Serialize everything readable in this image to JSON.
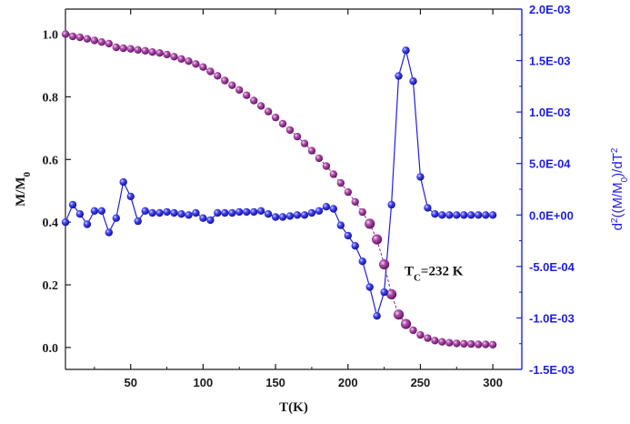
{
  "chart_data": {
    "type": "scatter",
    "title": "",
    "xlabel": "T(K)",
    "ylabel_left": "M/M",
    "ylabel_left_sub": "0",
    "ylabel_right_parts": [
      "d",
      "2",
      "((M/M",
      "0",
      ")/dT",
      "2"
    ],
    "xlim": [
      5,
      320
    ],
    "ylim_left": [
      -0.07,
      1.08
    ],
    "ylim_right": [
      -0.0015,
      0.002
    ],
    "x_ticks": [
      50,
      100,
      150,
      200,
      250,
      300
    ],
    "x_tick_labels": [
      "50",
      "100",
      "150",
      "200",
      "250",
      "300"
    ],
    "y_left_ticks": [
      0.0,
      0.2,
      0.4,
      0.6,
      0.8,
      1.0
    ],
    "y_left_tick_labels": [
      "0.0",
      "0.2",
      "0.4",
      "0.6",
      "0.8",
      "1.0"
    ],
    "y_right_ticks": [
      -0.0015,
      -0.001,
      -0.0005,
      0.0,
      0.0005,
      0.001,
      0.0015,
      0.002
    ],
    "y_right_tick_labels": [
      "-1.5E-03",
      "-1.0E-03",
      "-5.0E-04",
      "0.0E+00",
      "5.0E-04",
      "1.0E-03",
      "1.5E-03",
      "2.0E-03"
    ],
    "annotation": {
      "main": "T",
      "sub": "C",
      "rest": "=232 K",
      "x": 234,
      "y_left": 0.23
    },
    "series": [
      {
        "name": "M/M0",
        "axis": "left",
        "color": "#8a1f88",
        "marker": "sphere",
        "x": [
          5,
          10,
          15,
          20,
          25,
          30,
          35,
          40,
          45,
          50,
          55,
          60,
          65,
          70,
          75,
          80,
          85,
          90,
          95,
          100,
          105,
          110,
          115,
          120,
          125,
          130,
          135,
          140,
          145,
          150,
          155,
          160,
          165,
          170,
          175,
          180,
          185,
          190,
          195,
          200,
          205,
          210,
          215,
          220,
          225,
          230,
          235,
          240,
          245,
          250,
          255,
          260,
          265,
          270,
          275,
          280,
          285,
          290,
          295,
          300
        ],
        "values": [
          1.0,
          0.993,
          0.99,
          0.985,
          0.98,
          0.975,
          0.97,
          0.958,
          0.955,
          0.953,
          0.95,
          0.947,
          0.943,
          0.94,
          0.935,
          0.928,
          0.921,
          0.914,
          0.905,
          0.895,
          0.881,
          0.867,
          0.852,
          0.837,
          0.822,
          0.805,
          0.788,
          0.771,
          0.753,
          0.734,
          0.714,
          0.694,
          0.673,
          0.651,
          0.628,
          0.604,
          0.579,
          0.553,
          0.525,
          0.496,
          0.465,
          0.432,
          0.395,
          0.345,
          0.265,
          0.17,
          0.105,
          0.075,
          0.055,
          0.04,
          0.03,
          0.022,
          0.018,
          0.015,
          0.013,
          0.012,
          0.011,
          0.01,
          0.01,
          0.009
        ]
      },
      {
        "name": "d2(M/M0)/dT2",
        "axis": "right",
        "color": "#1f1fe0",
        "marker": "sphere",
        "x": [
          5,
          10,
          15,
          20,
          25,
          30,
          35,
          40,
          45,
          50,
          55,
          60,
          65,
          70,
          75,
          80,
          85,
          90,
          95,
          100,
          105,
          110,
          115,
          120,
          125,
          130,
          135,
          140,
          145,
          150,
          155,
          160,
          165,
          170,
          175,
          180,
          185,
          190,
          195,
          200,
          205,
          210,
          215,
          220,
          225,
          230,
          235,
          240,
          245,
          250,
          255,
          260,
          265,
          270,
          275,
          280,
          285,
          290,
          295,
          300
        ],
        "values": [
          -7e-05,
          0.0001,
          1e-05,
          -9e-05,
          4e-05,
          4e-05,
          -0.00017,
          -3e-05,
          0.00032,
          0.00018,
          -6e-05,
          4e-05,
          2e-05,
          2e-05,
          3e-05,
          2e-05,
          1e-05,
          0.0,
          2e-05,
          -3e-05,
          -5e-05,
          2e-05,
          2e-05,
          2e-05,
          3e-05,
          3e-05,
          3e-05,
          4e-05,
          1e-05,
          -2e-05,
          -2e-05,
          -1e-05,
          0.0,
          0.0,
          2e-05,
          4e-05,
          8e-05,
          6e-05,
          -0.0001,
          -0.0002,
          -0.0003,
          -0.00045,
          -0.0007,
          -0.00098,
          -0.00075,
          0.0001,
          0.00135,
          0.0016,
          0.0013,
          0.00037,
          7e-05,
          1e-05,
          0.0,
          0.0,
          0.0,
          0.0,
          0.0,
          0.0,
          0.0,
          0.0
        ]
      }
    ]
  }
}
